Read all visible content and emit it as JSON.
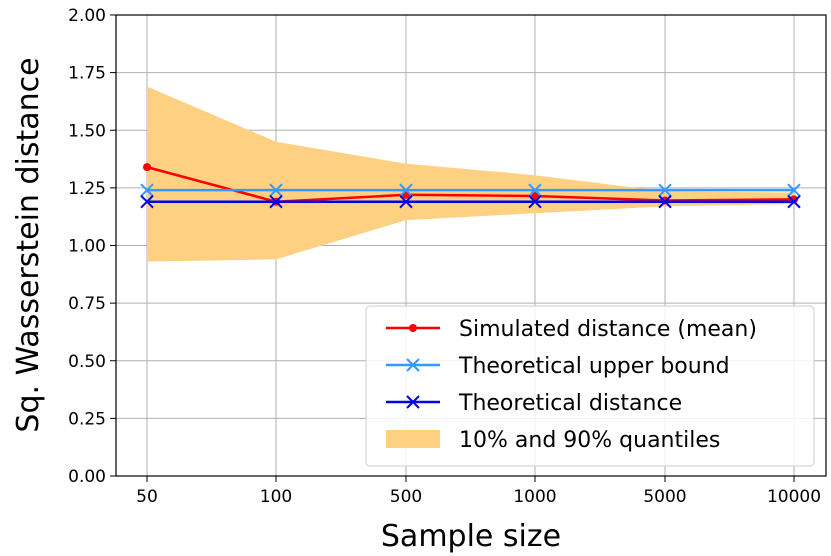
{
  "chart_data": {
    "type": "line",
    "title": "",
    "xlabel": "Sample size",
    "ylabel": "Sq. Wasserstein distance",
    "categories": [
      "50",
      "100",
      "500",
      "1000",
      "5000",
      "10000"
    ],
    "ylim": [
      0,
      2
    ],
    "yticks": [
      "0.00",
      "0.25",
      "0.50",
      "0.75",
      "1.00",
      "1.25",
      "1.50",
      "1.75",
      "2.00"
    ],
    "grid": true,
    "legend_position": "lower-right",
    "band": {
      "name": "10% and 90% quantiles",
      "color": "#fdd181",
      "lower": [
        0.93,
        0.94,
        1.11,
        1.14,
        1.17,
        1.18
      ],
      "upper": [
        1.69,
        1.45,
        1.355,
        1.305,
        1.235,
        1.23
      ]
    },
    "series": [
      {
        "name": "Simulated distance (mean)",
        "color": "#ff0000",
        "marker": "dot",
        "values": [
          1.34,
          1.19,
          1.22,
          1.215,
          1.195,
          1.2
        ]
      },
      {
        "name": "Theoretical upper bound",
        "color": "#3399ff",
        "marker": "x",
        "values": [
          1.24,
          1.24,
          1.24,
          1.24,
          1.24,
          1.24
        ]
      },
      {
        "name": "Theoretical distance",
        "color": "#0000ee",
        "marker": "x",
        "values": [
          1.19,
          1.19,
          1.19,
          1.19,
          1.19,
          1.19
        ]
      }
    ]
  }
}
